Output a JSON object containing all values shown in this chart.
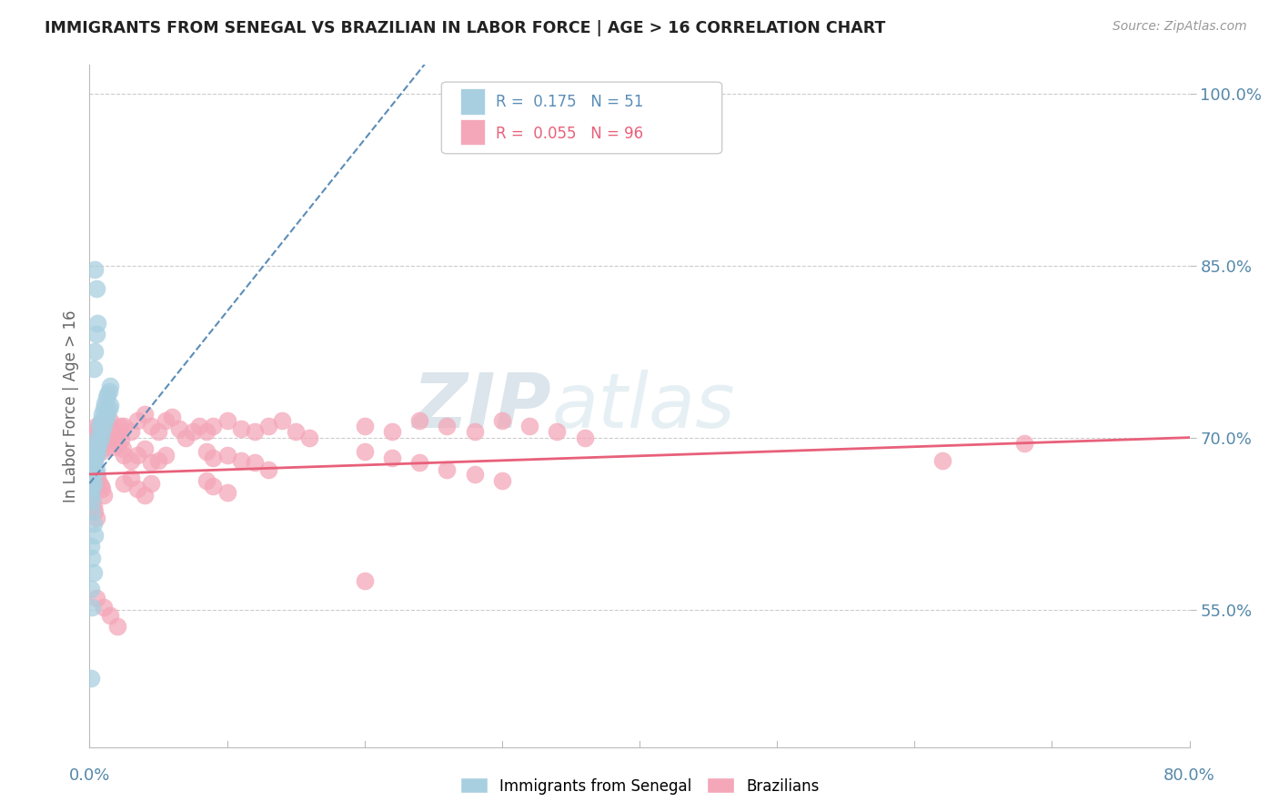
{
  "title": "IMMIGRANTS FROM SENEGAL VS BRAZILIAN IN LABOR FORCE | AGE > 16 CORRELATION CHART",
  "source": "Source: ZipAtlas.com",
  "ylabel": "In Labor Force | Age > 16",
  "watermark_zip": "ZIP",
  "watermark_atlas": "atlas",
  "senegal_color": "#a8cfe0",
  "brazil_color": "#f4a7b9",
  "senegal_trend_color": "#5b8db8",
  "brazil_trend_color": "#e8607a",
  "xlim": [
    0.0,
    0.8
  ],
  "ylim": [
    0.43,
    1.025
  ],
  "yticks": [
    0.55,
    0.7,
    0.85,
    1.0
  ],
  "ytick_labels": [
    "55.0%",
    "70.0%",
    "85.0%",
    "100.0%"
  ],
  "xtick_labels": [
    "0.0%",
    "",
    "",
    "",
    "",
    "",
    "",
    "",
    "80.0%"
  ],
  "background_color": "#ffffff",
  "grid_color": "#cccccc",
  "title_color": "#222222",
  "axis_tick_color": "#5588aa",
  "legend_r1": "R =  0.175   N = 51",
  "legend_r2": "R =  0.055   N = 96"
}
